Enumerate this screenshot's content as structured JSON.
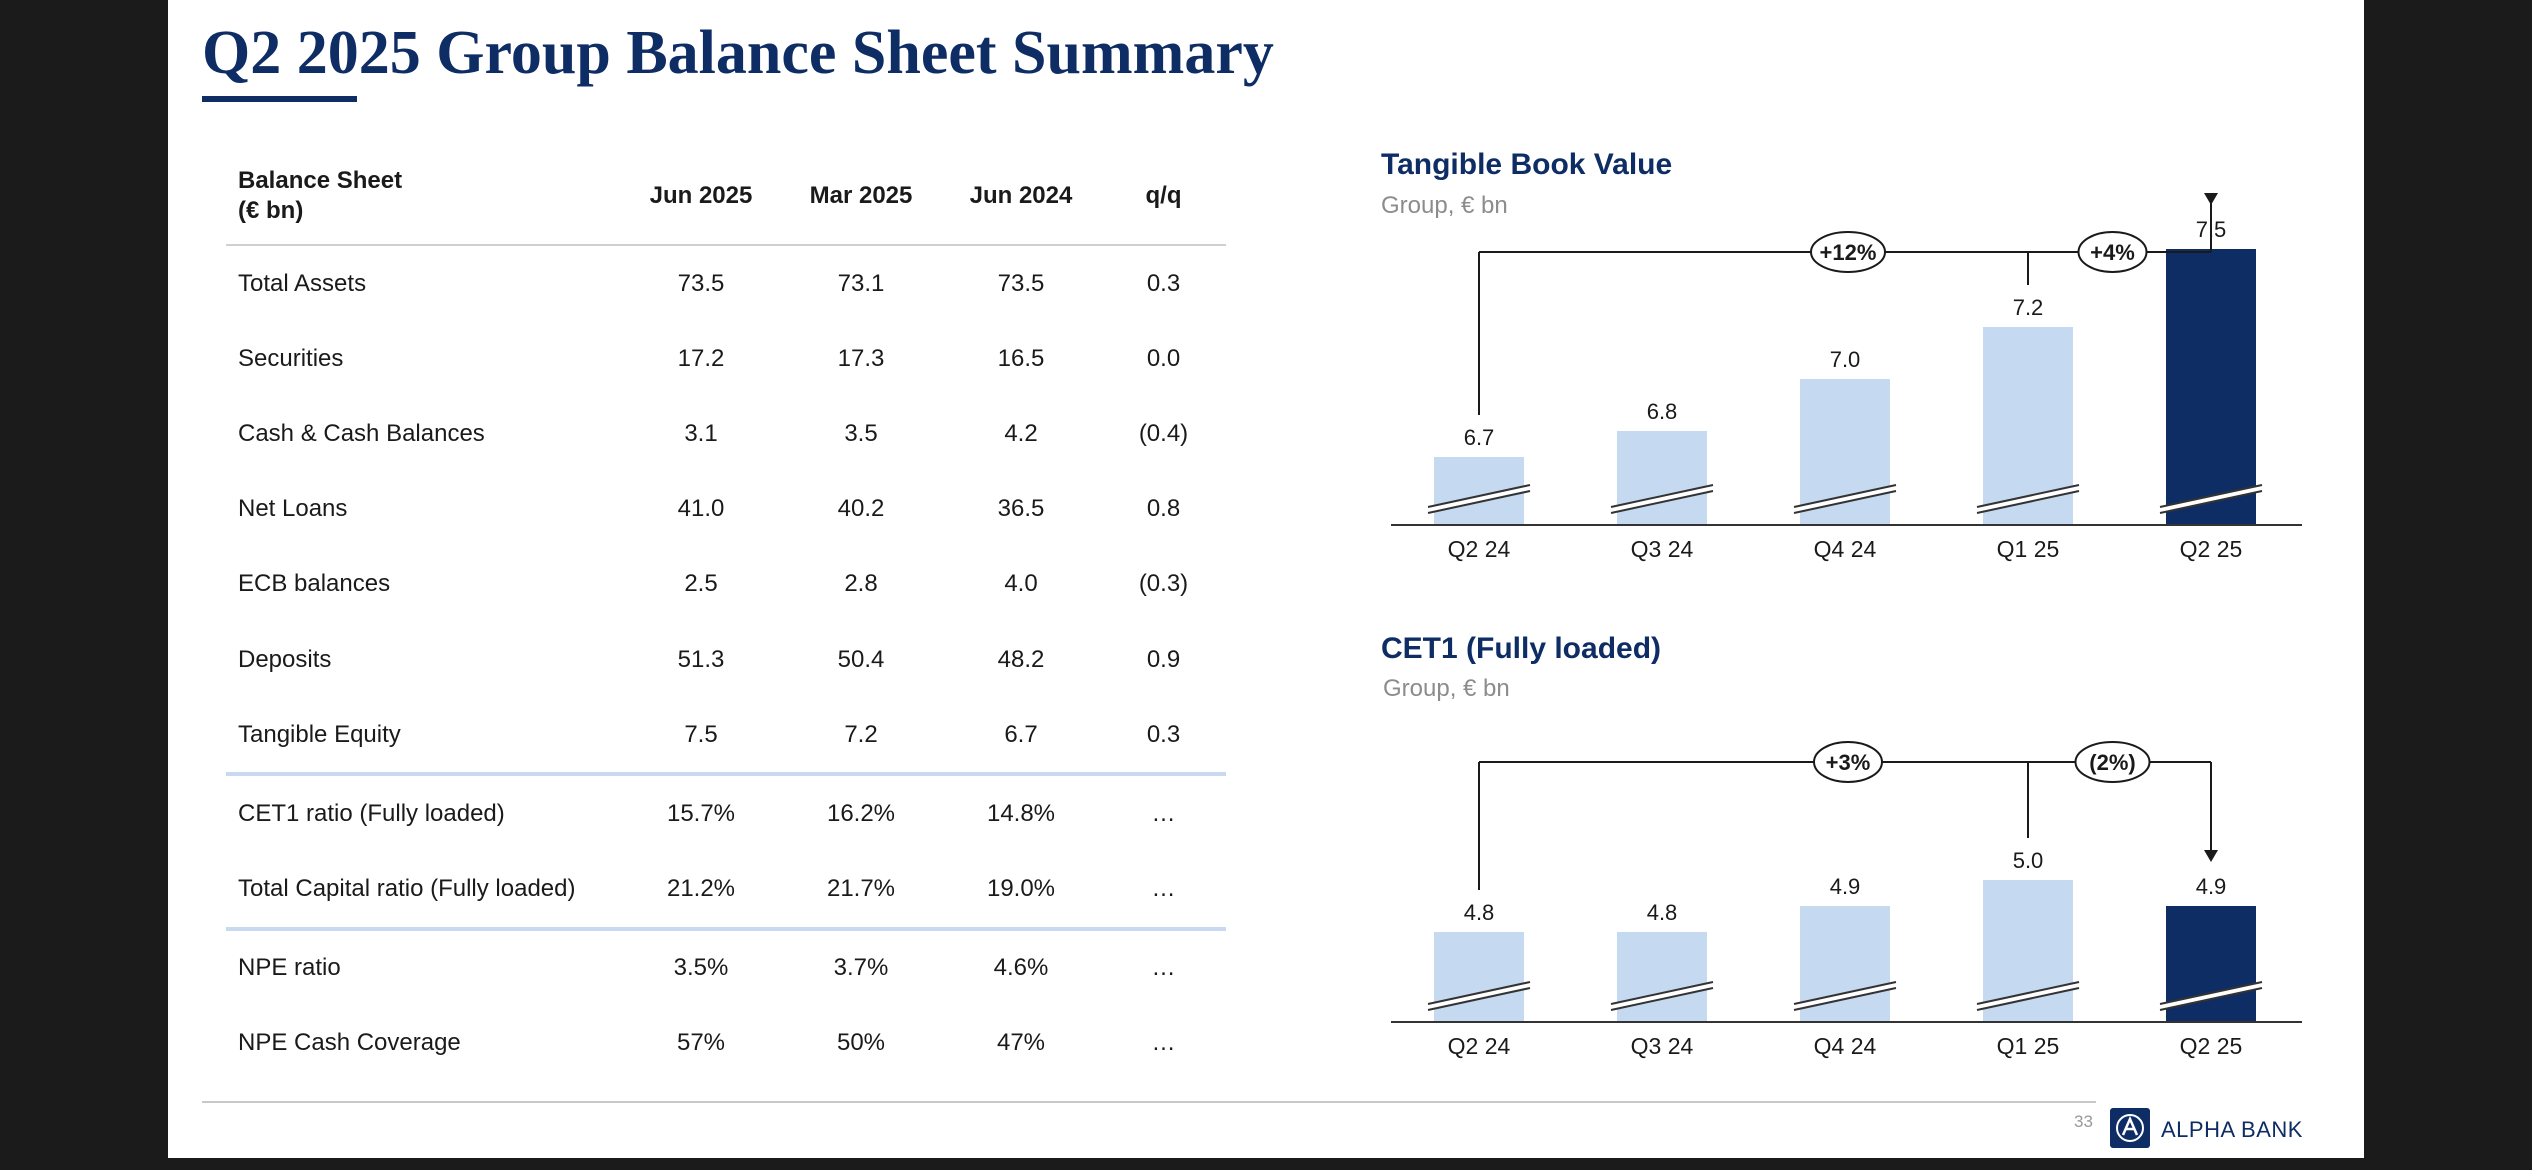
{
  "title": "Q2 2025 Group Balance Sheet Summary",
  "colors": {
    "navy": "#0e2d64",
    "light_bar": "#c5d9f1",
    "separator": "#c9daf0"
  },
  "table": {
    "header_line1": "Balance Sheet",
    "header_line2": "(€ bn)",
    "columns": [
      "Jun 2025",
      "Mar 2025",
      "Jun 2024",
      "q/q"
    ],
    "rows": [
      {
        "label": "Total Assets",
        "values": [
          "73.5",
          "73.1",
          "73.5",
          "0.3"
        ]
      },
      {
        "label": "Securities",
        "values": [
          "17.2",
          "17.3",
          "16.5",
          "0.0"
        ]
      },
      {
        "label": "Cash & Cash Balances",
        "values": [
          "3.1",
          "3.5",
          "4.2",
          "(0.4)"
        ]
      },
      {
        "label": "Net Loans",
        "values": [
          "41.0",
          "40.2",
          "36.5",
          "0.8"
        ]
      },
      {
        "label": "ECB balances",
        "values": [
          "2.5",
          "2.8",
          "4.0",
          "(0.3)"
        ]
      },
      {
        "label": "Deposits",
        "values": [
          "51.3",
          "50.4",
          "48.2",
          "0.9"
        ]
      },
      {
        "label": "Tangible Equity",
        "values": [
          "7.5",
          "7.2",
          "6.7",
          "0.3"
        ]
      },
      {
        "label": "CET1 ratio (Fully loaded)",
        "values": [
          "15.7%",
          "16.2%",
          "14.8%",
          "…"
        ]
      },
      {
        "label": "Total Capital ratio (Fully loaded)",
        "values": [
          "21.2%",
          "21.7%",
          "19.0%",
          "…"
        ]
      },
      {
        "label": "NPE ratio",
        "values": [
          "3.5%",
          "3.7%",
          "4.6%",
          "…"
        ]
      },
      {
        "label": "NPE Cash Coverage",
        "values": [
          "57%",
          "50%",
          "47%",
          "…"
        ]
      }
    ]
  },
  "chart_data": [
    {
      "type": "bar",
      "title": "Tangible Book Value",
      "subtitle": "Group, € bn",
      "categories": [
        "Q2 24",
        "Q3 24",
        "Q4 24",
        "Q1 25",
        "Q2 25"
      ],
      "values": [
        6.7,
        6.8,
        7.0,
        7.2,
        7.5
      ],
      "value_labels": [
        "6.7",
        "6.8",
        "7.0",
        "7.2",
        "7.5"
      ],
      "highlight_index": 4,
      "broken_axis": true,
      "annotations": [
        {
          "label": "+12%",
          "from": "Q2 24",
          "to": "Q2 25"
        },
        {
          "label": "+4%",
          "from": "Q1 25",
          "to": "Q2 25"
        }
      ]
    },
    {
      "type": "bar",
      "title": "CET1 (Fully loaded)",
      "subtitle": "Group, € bn",
      "categories": [
        "Q2 24",
        "Q3 24",
        "Q4 24",
        "Q1 25",
        "Q2 25"
      ],
      "values": [
        4.8,
        4.8,
        4.9,
        5.0,
        4.9
      ],
      "value_labels": [
        "4.8",
        "4.8",
        "4.9",
        "5.0",
        "4.9"
      ],
      "highlight_index": 4,
      "broken_axis": true,
      "annotations": [
        {
          "label": "+3%",
          "from": "Q2 24",
          "to": "Q2 25"
        },
        {
          "label": "(2%)",
          "from": "Q1 25",
          "to": "Q2 25"
        }
      ]
    }
  ],
  "footer": {
    "page_number": "33",
    "logo_text": "ALPHA BANK"
  }
}
